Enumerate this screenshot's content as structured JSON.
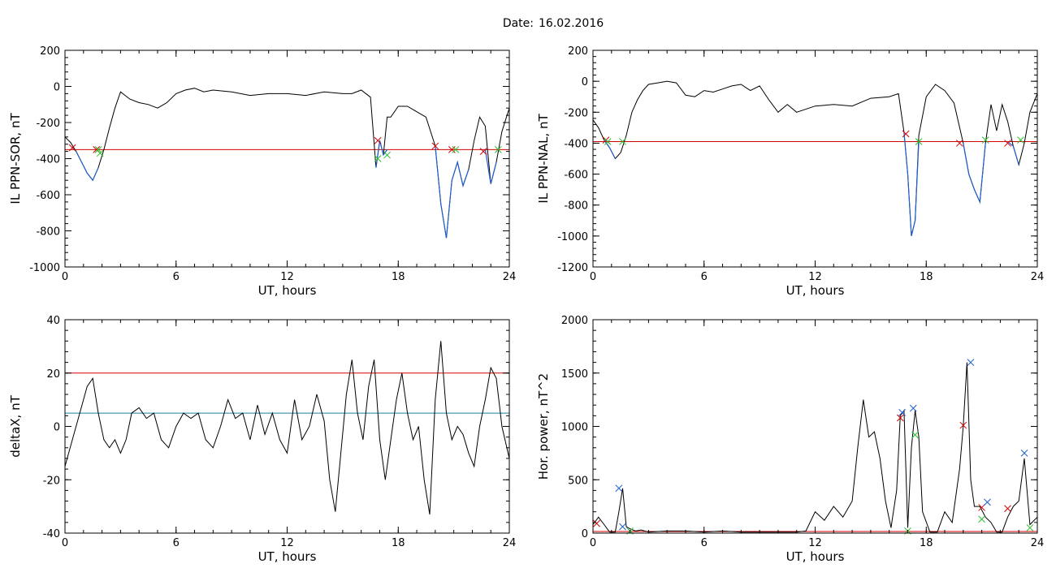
{
  "title_label": "Date:",
  "title_value": "16.02.2016",
  "chart_data": [
    {
      "id": "p1",
      "type": "line",
      "xlabel": "UT, hours",
      "ylabel": "IL PPN-SOR, nT",
      "xlim": [
        0,
        24
      ],
      "ylim": [
        -1000,
        200
      ],
      "xticks": [
        0,
        6,
        12,
        18,
        24
      ],
      "yticks": [
        -1000,
        -800,
        -600,
        -400,
        -200,
        0,
        200
      ],
      "threshold_lines": [
        {
          "y": -350,
          "color": "#d40000"
        }
      ],
      "series": [
        {
          "color": "#000000",
          "x": [
            0,
            0.3,
            0.6,
            0.9,
            1.2,
            1.5,
            1.8,
            2.1,
            2.4,
            2.7,
            3.0,
            3.5,
            4.0,
            4.5,
            5.0,
            5.5,
            6.0,
            6.5,
            7.0,
            7.5,
            8.0,
            9.0,
            10.0,
            11.0,
            12.0,
            13.0,
            14.0,
            15.0,
            15.5,
            16.0,
            16.5,
            16.8,
            17.0,
            17.2,
            17.4,
            17.6,
            18.0,
            18.5,
            19.0,
            19.5,
            20.0,
            20.3,
            20.6,
            20.9,
            21.2,
            21.5,
            21.8,
            22.1,
            22.4,
            22.7,
            23.0,
            23.3,
            23.6,
            24.0
          ],
          "y": [
            -280,
            -310,
            -360,
            -420,
            -480,
            -520,
            -450,
            -350,
            -230,
            -120,
            -30,
            -70,
            -90,
            -100,
            -120,
            -90,
            -40,
            -20,
            -10,
            -30,
            -20,
            -30,
            -50,
            -40,
            -40,
            -50,
            -30,
            -40,
            -40,
            -20,
            -60,
            -450,
            -300,
            -380,
            -170,
            -170,
            -110,
            -110,
            -140,
            -170,
            -330,
            -650,
            -840,
            -520,
            -420,
            -550,
            -460,
            -300,
            -170,
            -220,
            -540,
            -420,
            -250,
            -120
          ]
        }
      ],
      "overlays": [
        {
          "color": "#1f5fcf",
          "x": [
            0.6,
            0.9,
            1.2,
            1.5,
            1.8
          ],
          "y": [
            -360,
            -420,
            -480,
            -520,
            -450
          ]
        },
        {
          "color": "#1f5fcf",
          "x": [
            16.8,
            17.0,
            17.2,
            17.4
          ],
          "y": [
            -450,
            -300,
            -380,
            -350
          ]
        },
        {
          "color": "#1f5fcf",
          "x": [
            20.0,
            20.3,
            20.6,
            20.9,
            21.2,
            21.5,
            21.8
          ],
          "y": [
            -330,
            -650,
            -840,
            -520,
            -420,
            -550,
            -460
          ]
        },
        {
          "color": "#1f5fcf",
          "x": [
            22.7,
            23.0,
            23.3
          ],
          "y": [
            -350,
            -540,
            -420
          ]
        }
      ],
      "markers": [
        {
          "color": "#d40000",
          "x": [
            0.4,
            1.7,
            16.9,
            20.0,
            20.9,
            22.6
          ],
          "y": [
            -340,
            -350,
            -300,
            -330,
            -350,
            -360
          ]
        },
        {
          "color": "#2bbf2b",
          "x": [
            1.8,
            1.9,
            16.9,
            17.4,
            21.1,
            23.4
          ],
          "y": [
            -350,
            -370,
            -400,
            -380,
            -350,
            -350
          ]
        }
      ]
    },
    {
      "id": "p2",
      "type": "line",
      "xlabel": "UT, hours",
      "ylabel": "IL PPN-NAL, nT",
      "xlim": [
        0,
        24
      ],
      "ylim": [
        -1200,
        200
      ],
      "xticks": [
        0,
        6,
        12,
        18,
        24
      ],
      "yticks": [
        -1200,
        -1000,
        -800,
        -600,
        -400,
        -200,
        0,
        200
      ],
      "threshold_lines": [
        {
          "y": -390,
          "color": "#d40000"
        }
      ],
      "series": [
        {
          "color": "#000000",
          "x": [
            0,
            0.3,
            0.6,
            0.9,
            1.2,
            1.5,
            1.8,
            2.1,
            2.4,
            2.7,
            3.0,
            3.5,
            4.0,
            4.5,
            5.0,
            5.5,
            6.0,
            6.5,
            7.0,
            7.5,
            8.0,
            8.5,
            9.0,
            9.5,
            10.0,
            10.5,
            11.0,
            12.0,
            13.0,
            14.0,
            15.0,
            16.0,
            16.5,
            16.8,
            17.0,
            17.2,
            17.4,
            17.6,
            18.0,
            18.5,
            19.0,
            19.5,
            20.0,
            20.3,
            20.6,
            20.9,
            21.2,
            21.5,
            21.8,
            22.1,
            22.4,
            22.7,
            23.0,
            23.3,
            23.6,
            24.0
          ],
          "y": [
            -250,
            -300,
            -380,
            -430,
            -500,
            -460,
            -350,
            -200,
            -120,
            -60,
            -20,
            -10,
            0,
            -10,
            -90,
            -100,
            -60,
            -70,
            -50,
            -30,
            -20,
            -60,
            -30,
            -120,
            -200,
            -150,
            -200,
            -160,
            -150,
            -160,
            -110,
            -100,
            -80,
            -330,
            -600,
            -1000,
            -900,
            -350,
            -100,
            -20,
            -60,
            -140,
            -400,
            -600,
            -700,
            -780,
            -400,
            -150,
            -320,
            -150,
            -260,
            -420,
            -540,
            -400,
            -200,
            -80
          ]
        }
      ],
      "overlays": [
        {
          "color": "#1f5fcf",
          "x": [
            0.6,
            0.9,
            1.2
          ],
          "y": [
            -380,
            -430,
            -500
          ]
        },
        {
          "color": "#1f5fcf",
          "x": [
            16.8,
            17.0,
            17.2,
            17.4,
            17.6
          ],
          "y": [
            -330,
            -600,
            -1000,
            -900,
            -390
          ]
        },
        {
          "color": "#1f5fcf",
          "x": [
            20.0,
            20.3,
            20.6,
            20.9,
            21.2
          ],
          "y": [
            -400,
            -600,
            -700,
            -780,
            -400
          ]
        },
        {
          "color": "#1f5fcf",
          "x": [
            22.4,
            22.7,
            23.0
          ],
          "y": [
            -390,
            -420,
            -540
          ]
        }
      ],
      "markers": [
        {
          "color": "#d40000",
          "x": [
            0.7,
            16.9,
            19.8,
            22.4
          ],
          "y": [
            -380,
            -340,
            -400,
            -400
          ]
        },
        {
          "color": "#2bbf2b",
          "x": [
            0.8,
            1.6,
            17.6,
            21.2,
            23.1
          ],
          "y": [
            -390,
            -390,
            -390,
            -380,
            -380
          ]
        }
      ]
    },
    {
      "id": "p3",
      "type": "line",
      "xlabel": "UT, hours",
      "ylabel": "deltaX, nT",
      "xlim": [
        0,
        24
      ],
      "ylim": [
        -40,
        40
      ],
      "xticks": [
        0,
        6,
        12,
        18,
        24
      ],
      "yticks": [
        -40,
        -20,
        0,
        20,
        40
      ],
      "threshold_lines": [
        {
          "y": 20,
          "color": "#d40000"
        },
        {
          "y": 5,
          "color": "#1f7fa0"
        }
      ],
      "series": [
        {
          "color": "#000000",
          "x": [
            0,
            0.4,
            0.8,
            1.2,
            1.5,
            1.8,
            2.1,
            2.4,
            2.7,
            3.0,
            3.3,
            3.6,
            4.0,
            4.4,
            4.8,
            5.2,
            5.6,
            6.0,
            6.4,
            6.8,
            7.2,
            7.6,
            8.0,
            8.4,
            8.8,
            9.2,
            9.6,
            10.0,
            10.4,
            10.8,
            11.2,
            11.6,
            12.0,
            12.4,
            12.8,
            13.2,
            13.6,
            14.0,
            14.3,
            14.6,
            14.9,
            15.2,
            15.5,
            15.8,
            16.1,
            16.4,
            16.7,
            17.0,
            17.3,
            17.6,
            17.9,
            18.2,
            18.5,
            18.8,
            19.1,
            19.4,
            19.7,
            20.0,
            20.3,
            20.6,
            20.9,
            21.2,
            21.5,
            21.8,
            22.1,
            22.4,
            22.7,
            23.0,
            23.3,
            23.6,
            24.0
          ],
          "y": [
            -15,
            -5,
            5,
            15,
            18,
            5,
            -5,
            -8,
            -5,
            -10,
            -5,
            5,
            7,
            3,
            5,
            -5,
            -8,
            0,
            5,
            3,
            5,
            -5,
            -8,
            0,
            10,
            3,
            5,
            -5,
            8,
            -3,
            5,
            -5,
            -10,
            10,
            -5,
            0,
            12,
            2,
            -20,
            -32,
            -10,
            12,
            25,
            5,
            -5,
            15,
            25,
            -5,
            -20,
            -5,
            10,
            20,
            5,
            -5,
            0,
            -20,
            -33,
            10,
            32,
            5,
            -5,
            0,
            -3,
            -10,
            -15,
            0,
            10,
            22,
            18,
            0,
            -12
          ]
        }
      ],
      "overlays": [],
      "markers": []
    },
    {
      "id": "p4",
      "type": "line",
      "xlabel": "UT, hours",
      "ylabel": "Hor. power, nT^2",
      "xlim": [
        0,
        24
      ],
      "ylim": [
        0,
        2000
      ],
      "xticks": [
        0,
        6,
        12,
        18,
        24
      ],
      "yticks": [
        0,
        500,
        1000,
        1500,
        2000
      ],
      "threshold_lines": [
        {
          "y": -20,
          "color": "#d40000"
        }
      ],
      "series": [
        {
          "color": "#000000",
          "x": [
            0,
            0.3,
            0.6,
            0.9,
            1.2,
            1.4,
            1.6,
            1.8,
            2.0,
            2.3,
            2.6,
            3.0,
            4.0,
            5.0,
            6.0,
            7.0,
            8.0,
            9.0,
            10.0,
            11.0,
            11.5,
            12.0,
            12.5,
            13.0,
            13.5,
            14.0,
            14.3,
            14.6,
            14.9,
            15.2,
            15.5,
            15.8,
            16.1,
            16.4,
            16.6,
            16.8,
            17.0,
            17.2,
            17.4,
            17.6,
            17.8,
            18.2,
            18.6,
            19.0,
            19.4,
            19.8,
            20.0,
            20.2,
            20.4,
            20.6,
            20.9,
            21.2,
            21.5,
            21.8,
            22.1,
            22.4,
            22.7,
            23.0,
            23.3,
            23.6,
            24.0
          ],
          "y": [
            80,
            150,
            80,
            10,
            10,
            200,
            420,
            60,
            40,
            20,
            30,
            10,
            20,
            20,
            10,
            20,
            10,
            10,
            10,
            10,
            20,
            200,
            120,
            250,
            150,
            300,
            800,
            1250,
            900,
            950,
            700,
            300,
            50,
            400,
            1100,
            1150,
            50,
            800,
            1150,
            900,
            200,
            10,
            10,
            200,
            100,
            600,
            1000,
            1600,
            500,
            250,
            250,
            150,
            100,
            10,
            10,
            150,
            250,
            300,
            700,
            80,
            150
          ]
        }
      ],
      "overlays": [],
      "markers": [
        {
          "color": "#d40000",
          "x": [
            0.2,
            16.6,
            20.0,
            21.0,
            22.4
          ],
          "y": [
            90,
            1080,
            1010,
            240,
            230
          ]
        },
        {
          "color": "#1f5fcf",
          "x": [
            1.4,
            1.6,
            16.7,
            17.3,
            20.4,
            21.3,
            23.3
          ],
          "y": [
            420,
            60,
            1130,
            1170,
            1600,
            290,
            750
          ]
        },
        {
          "color": "#2bbf2b",
          "x": [
            2.0,
            17.0,
            17.4,
            21.0,
            23.6
          ],
          "y": [
            20,
            20,
            920,
            130,
            50
          ]
        }
      ]
    }
  ]
}
